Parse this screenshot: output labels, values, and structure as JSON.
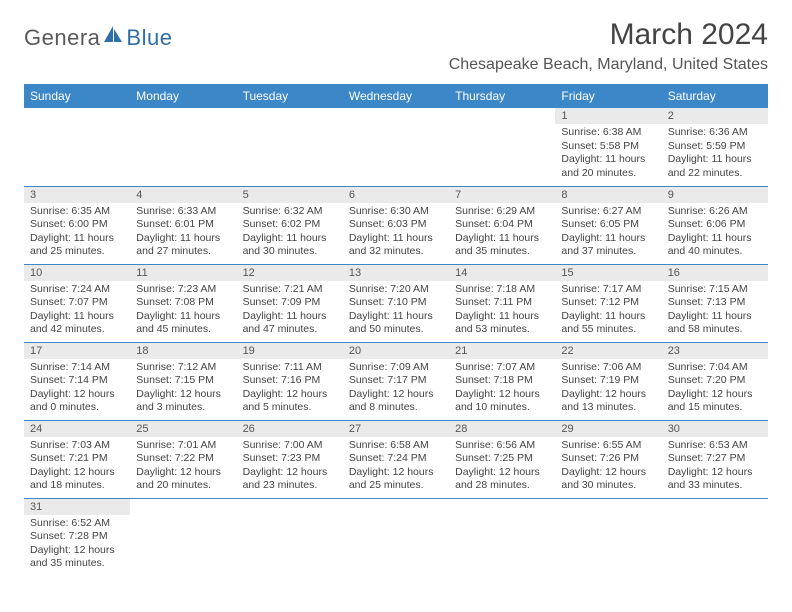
{
  "logo": {
    "part1": "Genera",
    "part2": "Blue"
  },
  "title": "March 2024",
  "location": "Chesapeake Beach, Maryland, United States",
  "colors": {
    "header_bg": "#3b87c8",
    "header_text": "#ffffff",
    "daynum_bg": "#eaeaea",
    "row_border": "#3b87c8",
    "body_text": "#444444",
    "logo_gray": "#5a5a5a",
    "logo_blue": "#2f6fa7"
  },
  "weekdays": [
    "Sunday",
    "Monday",
    "Tuesday",
    "Wednesday",
    "Thursday",
    "Friday",
    "Saturday"
  ],
  "weeks": [
    [
      null,
      null,
      null,
      null,
      null,
      {
        "n": 1,
        "sunrise": "6:38 AM",
        "sunset": "5:58 PM",
        "dl_h": 11,
        "dl_m": 20
      },
      {
        "n": 2,
        "sunrise": "6:36 AM",
        "sunset": "5:59 PM",
        "dl_h": 11,
        "dl_m": 22
      }
    ],
    [
      {
        "n": 3,
        "sunrise": "6:35 AM",
        "sunset": "6:00 PM",
        "dl_h": 11,
        "dl_m": 25
      },
      {
        "n": 4,
        "sunrise": "6:33 AM",
        "sunset": "6:01 PM",
        "dl_h": 11,
        "dl_m": 27
      },
      {
        "n": 5,
        "sunrise": "6:32 AM",
        "sunset": "6:02 PM",
        "dl_h": 11,
        "dl_m": 30
      },
      {
        "n": 6,
        "sunrise": "6:30 AM",
        "sunset": "6:03 PM",
        "dl_h": 11,
        "dl_m": 32
      },
      {
        "n": 7,
        "sunrise": "6:29 AM",
        "sunset": "6:04 PM",
        "dl_h": 11,
        "dl_m": 35
      },
      {
        "n": 8,
        "sunrise": "6:27 AM",
        "sunset": "6:05 PM",
        "dl_h": 11,
        "dl_m": 37
      },
      {
        "n": 9,
        "sunrise": "6:26 AM",
        "sunset": "6:06 PM",
        "dl_h": 11,
        "dl_m": 40
      }
    ],
    [
      {
        "n": 10,
        "sunrise": "7:24 AM",
        "sunset": "7:07 PM",
        "dl_h": 11,
        "dl_m": 42
      },
      {
        "n": 11,
        "sunrise": "7:23 AM",
        "sunset": "7:08 PM",
        "dl_h": 11,
        "dl_m": 45
      },
      {
        "n": 12,
        "sunrise": "7:21 AM",
        "sunset": "7:09 PM",
        "dl_h": 11,
        "dl_m": 47
      },
      {
        "n": 13,
        "sunrise": "7:20 AM",
        "sunset": "7:10 PM",
        "dl_h": 11,
        "dl_m": 50
      },
      {
        "n": 14,
        "sunrise": "7:18 AM",
        "sunset": "7:11 PM",
        "dl_h": 11,
        "dl_m": 53
      },
      {
        "n": 15,
        "sunrise": "7:17 AM",
        "sunset": "7:12 PM",
        "dl_h": 11,
        "dl_m": 55
      },
      {
        "n": 16,
        "sunrise": "7:15 AM",
        "sunset": "7:13 PM",
        "dl_h": 11,
        "dl_m": 58
      }
    ],
    [
      {
        "n": 17,
        "sunrise": "7:14 AM",
        "sunset": "7:14 PM",
        "dl_h": 12,
        "dl_m": 0
      },
      {
        "n": 18,
        "sunrise": "7:12 AM",
        "sunset": "7:15 PM",
        "dl_h": 12,
        "dl_m": 3
      },
      {
        "n": 19,
        "sunrise": "7:11 AM",
        "sunset": "7:16 PM",
        "dl_h": 12,
        "dl_m": 5
      },
      {
        "n": 20,
        "sunrise": "7:09 AM",
        "sunset": "7:17 PM",
        "dl_h": 12,
        "dl_m": 8
      },
      {
        "n": 21,
        "sunrise": "7:07 AM",
        "sunset": "7:18 PM",
        "dl_h": 12,
        "dl_m": 10
      },
      {
        "n": 22,
        "sunrise": "7:06 AM",
        "sunset": "7:19 PM",
        "dl_h": 12,
        "dl_m": 13
      },
      {
        "n": 23,
        "sunrise": "7:04 AM",
        "sunset": "7:20 PM",
        "dl_h": 12,
        "dl_m": 15
      }
    ],
    [
      {
        "n": 24,
        "sunrise": "7:03 AM",
        "sunset": "7:21 PM",
        "dl_h": 12,
        "dl_m": 18
      },
      {
        "n": 25,
        "sunrise": "7:01 AM",
        "sunset": "7:22 PM",
        "dl_h": 12,
        "dl_m": 20
      },
      {
        "n": 26,
        "sunrise": "7:00 AM",
        "sunset": "7:23 PM",
        "dl_h": 12,
        "dl_m": 23
      },
      {
        "n": 27,
        "sunrise": "6:58 AM",
        "sunset": "7:24 PM",
        "dl_h": 12,
        "dl_m": 25
      },
      {
        "n": 28,
        "sunrise": "6:56 AM",
        "sunset": "7:25 PM",
        "dl_h": 12,
        "dl_m": 28
      },
      {
        "n": 29,
        "sunrise": "6:55 AM",
        "sunset": "7:26 PM",
        "dl_h": 12,
        "dl_m": 30
      },
      {
        "n": 30,
        "sunrise": "6:53 AM",
        "sunset": "7:27 PM",
        "dl_h": 12,
        "dl_m": 33
      }
    ],
    [
      {
        "n": 31,
        "sunrise": "6:52 AM",
        "sunset": "7:28 PM",
        "dl_h": 12,
        "dl_m": 35
      },
      null,
      null,
      null,
      null,
      null,
      null
    ]
  ]
}
